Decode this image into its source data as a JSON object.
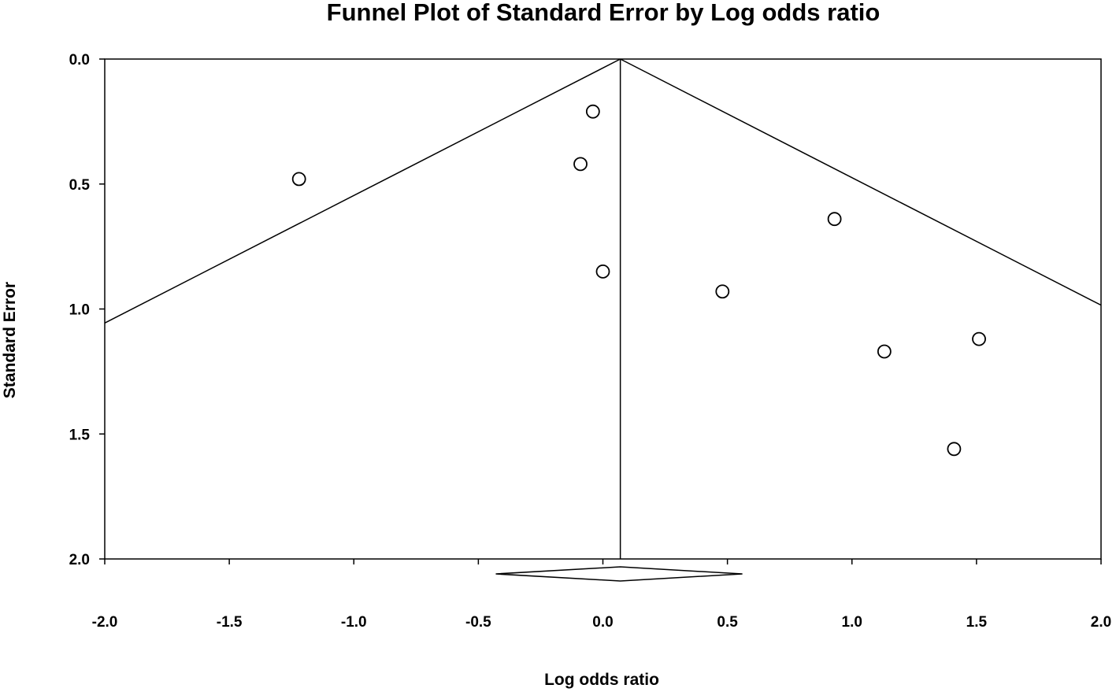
{
  "chart_data": {
    "type": "scatter",
    "title": "Funnel Plot of Standard Error by Log odds ratio",
    "xlabel": "Log odds ratio",
    "ylabel": "Standard Error",
    "xlim": [
      -2.0,
      2.0
    ],
    "ylim": [
      0.0,
      2.0
    ],
    "y_inverted": true,
    "x_ticks": [
      "-2.0",
      "-1.5",
      "-1.0",
      "-0.5",
      "0.0",
      "0.5",
      "1.0",
      "1.5",
      "2.0"
    ],
    "y_ticks": [
      "0.0",
      "0.5",
      "1.0",
      "1.5",
      "2.0"
    ],
    "points": [
      {
        "x": -0.04,
        "y": 0.21
      },
      {
        "x": -0.09,
        "y": 0.42
      },
      {
        "x": -1.22,
        "y": 0.48
      },
      {
        "x": 0.93,
        "y": 0.64
      },
      {
        "x": 0.0,
        "y": 0.85
      },
      {
        "x": 0.48,
        "y": 0.93
      },
      {
        "x": 1.51,
        "y": 1.12
      },
      {
        "x": 1.13,
        "y": 1.17
      },
      {
        "x": 1.41,
        "y": 1.56
      }
    ],
    "pooled_estimate": 0.07,
    "diamond": {
      "center": 0.07,
      "lower": -0.43,
      "upper": 0.56
    },
    "funnel_slope": 1.96,
    "marker": "open-circle",
    "colors": {
      "line": "#000000",
      "marker_fill": "#ffffff",
      "marker_stroke": "#000000"
    }
  }
}
